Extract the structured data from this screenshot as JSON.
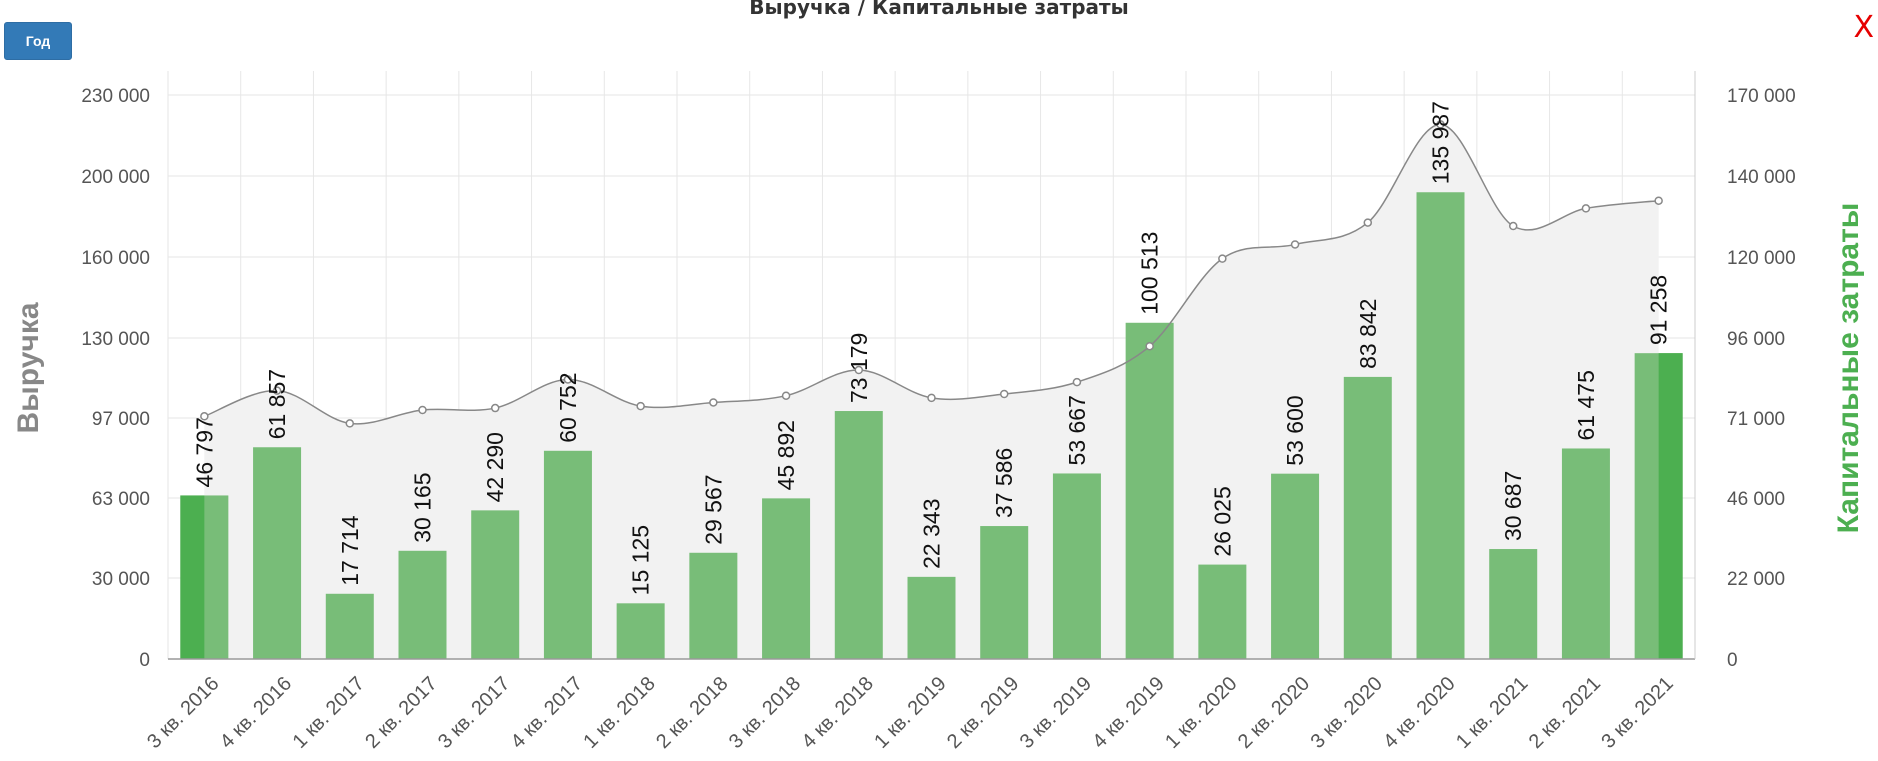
{
  "controls": {
    "period_label": "Год",
    "close_label": "X"
  },
  "colors": {
    "bar": "#78bd78",
    "bar_highlight": "#4caf50",
    "line": "#888888",
    "area": "#f2f2f2",
    "grid": "#e6e6e6",
    "left_axis_title": "#888888",
    "right_axis_title": "#4caf50"
  },
  "chart_data": {
    "type": "bar",
    "title": "Выручка / Капитальные затраты",
    "categories": [
      "3 кв. 2016",
      "4 кв. 2016",
      "1 кв. 2017",
      "2 кв. 2017",
      "3 кв. 2017",
      "4 кв. 2017",
      "1 кв. 2018",
      "2 кв. 2018",
      "3 кв. 2018",
      "4 кв. 2018",
      "1 кв. 2019",
      "2 кв. 2019",
      "3 кв. 2019",
      "4 кв. 2019",
      "1 кв. 2020",
      "2 кв. 2020",
      "3 кв. 2020",
      "4 кв. 2020",
      "1 кв. 2021",
      "2 кв. 2021",
      "3 кв. 2021"
    ],
    "left_axis": {
      "label": "Выручка",
      "ticks": [
        0,
        30000,
        63000,
        97000,
        130000,
        160000,
        200000,
        230000
      ],
      "tick_labels": [
        "0",
        "30 000",
        "63 000",
        "97 000",
        "130 000",
        "160 000",
        "200 000",
        "230 000"
      ]
    },
    "right_axis": {
      "label": "Капитальные затраты",
      "ticks": [
        0,
        22000,
        46000,
        71000,
        96000,
        120000,
        140000,
        170000
      ],
      "tick_labels": [
        "0",
        "22 000",
        "46 000",
        "71 000",
        "96 000",
        "120 000",
        "140 000",
        "170 000"
      ]
    },
    "series": [
      {
        "name": "Капитальные затраты",
        "type": "bar",
        "axis": "right",
        "values": [
          46797,
          61857,
          17714,
          30165,
          42290,
          60752,
          15125,
          29567,
          45892,
          73179,
          22343,
          37586,
          53667,
          100513,
          26025,
          53600,
          83842,
          135987,
          30687,
          61475,
          91258
        ],
        "value_labels": [
          "46 797",
          "61 857",
          "17 714",
          "30 165",
          "42 290",
          "60 752",
          "15 125",
          "29 567",
          "45 892",
          "73 179",
          "22 343",
          "37 586",
          "53 667",
          "100 513",
          "26 025",
          "53 600",
          "83 842",
          "135 987",
          "30 687",
          "61 475",
          "91 258"
        ],
        "highlighted": [
          0,
          20
        ]
      },
      {
        "name": "Выручка",
        "type": "area",
        "axis": "left",
        "values": [
          97700,
          108300,
          94700,
          100300,
          101100,
          112900,
          101900,
          103400,
          106200,
          116800,
          105300,
          106900,
          111800,
          126600,
          159400,
          166200,
          177000,
          219100,
          175300,
          184000,
          187800
        ]
      }
    ],
    "grid": true
  }
}
